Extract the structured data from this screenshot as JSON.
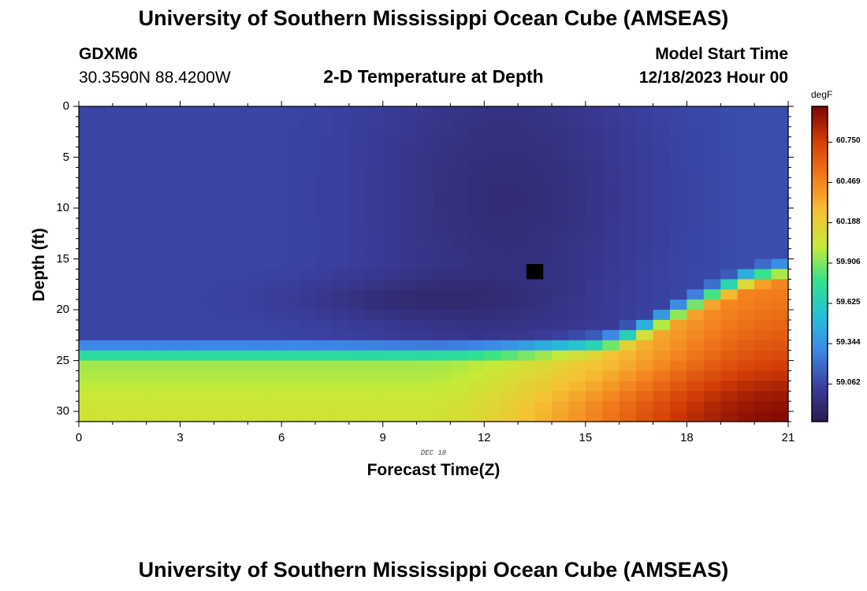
{
  "page_title": "University of Southern Mississippi Ocean Cube (AMSEAS)",
  "station": {
    "name": "GDXM6",
    "coords": "30.3590N  88.4200W"
  },
  "model": {
    "label": "Model Start Time",
    "time": "12/18/2023 Hour 00"
  },
  "colors": {
    "stops": [
      "#2b1a4f",
      "#3a3f9e",
      "#3d86e6",
      "#25c0d8",
      "#2fe28e",
      "#c6ea38",
      "#f6c134",
      "#f27b1c",
      "#d33d06",
      "#7a0403"
    ]
  },
  "chart_data": {
    "type": "heatmap",
    "title": "2-D Temperature at Depth",
    "xlabel": "Forecast Time(Z)",
    "ylabel": "Depth (ft)",
    "date_label": "DEC 18",
    "xlim": [
      0,
      21
    ],
    "ylim": [
      0,
      31
    ],
    "x_ticks": [
      0,
      3,
      6,
      9,
      12,
      15,
      18,
      21
    ],
    "y_ticks": [
      0,
      5,
      10,
      15,
      20,
      25,
      30
    ],
    "colorbar": {
      "label": "degF",
      "range": [
        58.8,
        61.0
      ],
      "ticks": [
        "59.062",
        "59.344",
        "59.625",
        "59.906",
        "60.188",
        "60.469",
        "60.750"
      ]
    },
    "description": "Temperature field: ~59.05-59.1 degF above 21 ft for early hours, coldest (~58.85 degF) near hour 12-14 at 0-17 ft, warm bottom layer ~59.9-60.1 degF below 24 ft, warming to >60.9 degF at depth by hour 21."
  },
  "footer_title": "University of Southern Mississippi Ocean Cube (AMSEAS)"
}
